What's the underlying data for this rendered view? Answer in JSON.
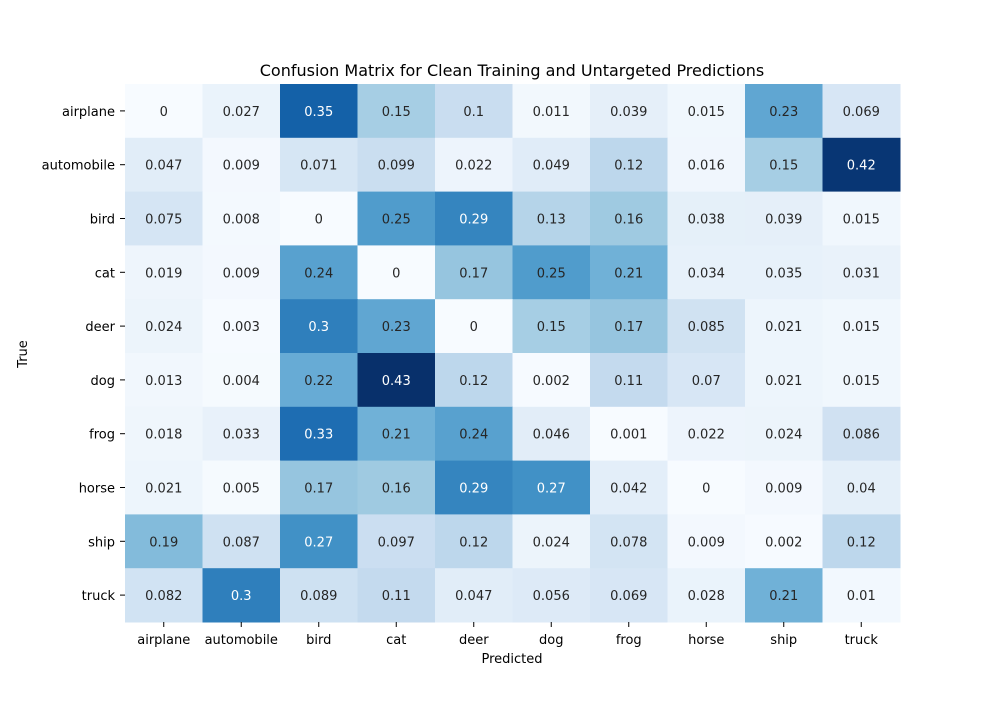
{
  "chart_data": {
    "type": "heatmap",
    "title": "Confusion Matrix for Clean Training and Untargeted Predictions",
    "xlabel": "Predicted",
    "ylabel": "True",
    "x_categories": [
      "airplane",
      "automobile",
      "bird",
      "cat",
      "deer",
      "dog",
      "frog",
      "horse",
      "ship",
      "truck"
    ],
    "y_categories": [
      "airplane",
      "automobile",
      "bird",
      "cat",
      "deer",
      "dog",
      "frog",
      "horse",
      "ship",
      "truck"
    ],
    "values": [
      [
        "0",
        "0.027",
        "0.35",
        "0.15",
        "0.1",
        "0.011",
        "0.039",
        "0.015",
        "0.23",
        "0.069"
      ],
      [
        "0.047",
        "0.009",
        "0.071",
        "0.099",
        "0.022",
        "0.049",
        "0.12",
        "0.016",
        "0.15",
        "0.42"
      ],
      [
        "0.075",
        "0.008",
        "0",
        "0.25",
        "0.29",
        "0.13",
        "0.16",
        "0.038",
        "0.039",
        "0.015"
      ],
      [
        "0.019",
        "0.009",
        "0.24",
        "0",
        "0.17",
        "0.25",
        "0.21",
        "0.034",
        "0.035",
        "0.031"
      ],
      [
        "0.024",
        "0.003",
        "0.3",
        "0.23",
        "0",
        "0.15",
        "0.17",
        "0.085",
        "0.021",
        "0.015"
      ],
      [
        "0.013",
        "0.004",
        "0.22",
        "0.43",
        "0.12",
        "0.002",
        "0.11",
        "0.07",
        "0.021",
        "0.015"
      ],
      [
        "0.018",
        "0.033",
        "0.33",
        "0.21",
        "0.24",
        "0.046",
        "0.001",
        "0.022",
        "0.024",
        "0.086"
      ],
      [
        "0.021",
        "0.005",
        "0.17",
        "0.16",
        "0.29",
        "0.27",
        "0.042",
        "0",
        "0.009",
        "0.04"
      ],
      [
        "0.19",
        "0.087",
        "0.27",
        "0.097",
        "0.12",
        "0.024",
        "0.078",
        "0.009",
        "0.002",
        "0.12"
      ],
      [
        "0.082",
        "0.3",
        "0.089",
        "0.11",
        "0.047",
        "0.056",
        "0.069",
        "0.028",
        "0.21",
        "0.01"
      ]
    ],
    "colormap": "Blues",
    "value_range": [
      0,
      0.43
    ],
    "colors": {
      "low": "#f7fbff",
      "high": "#08306b",
      "dark_text": "#262626",
      "light_text": "#ffffff"
    },
    "grid": false,
    "legend": "none"
  }
}
